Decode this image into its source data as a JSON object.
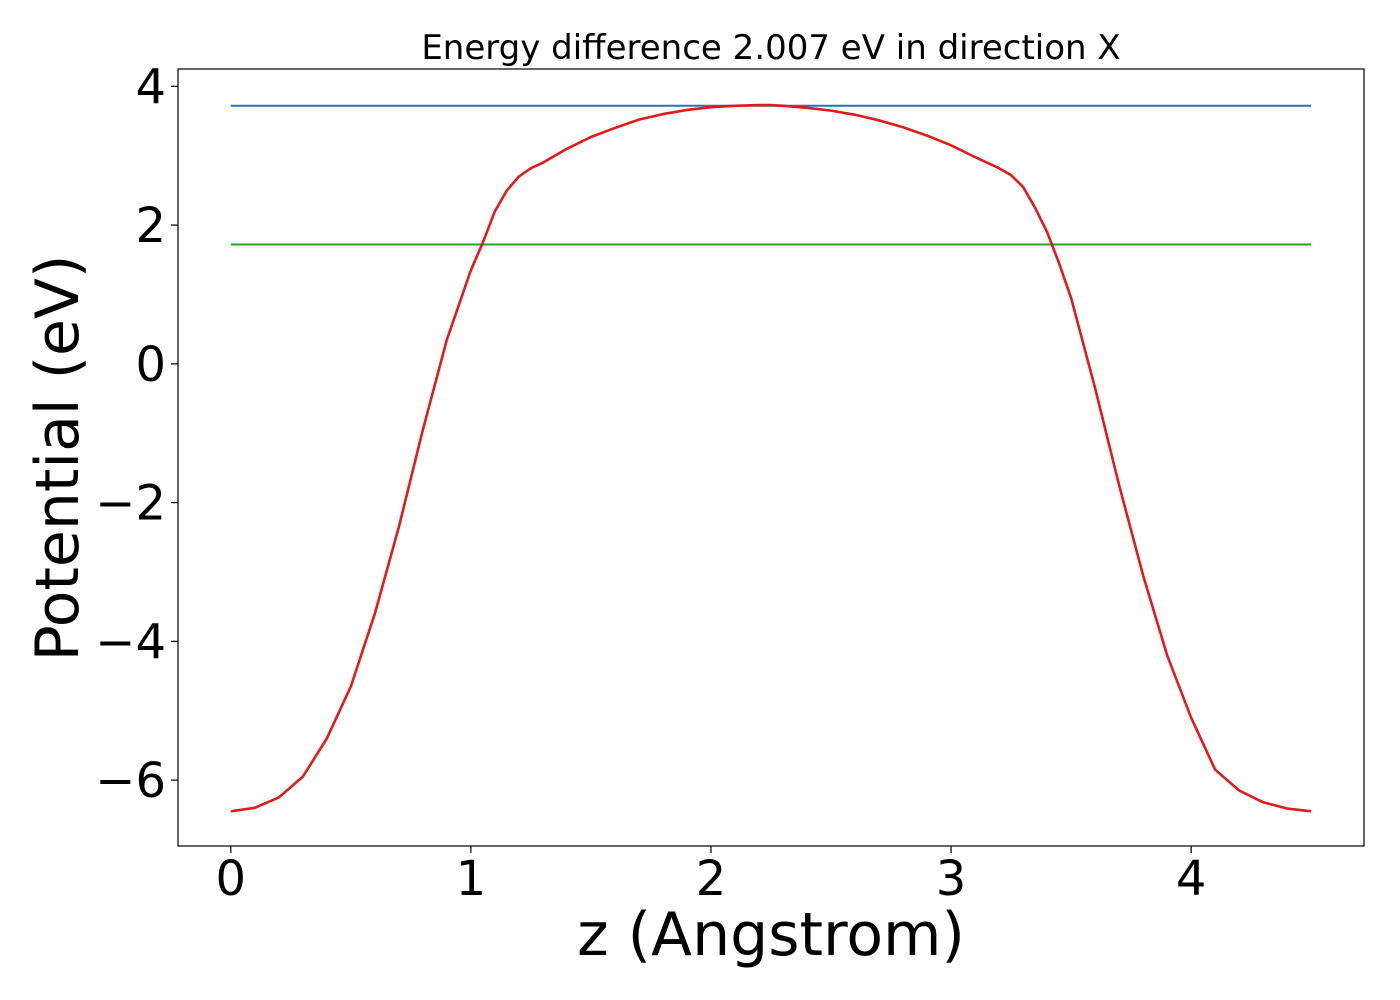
{
  "chart_data": {
    "type": "line",
    "title": "Energy difference 2.007 eV in direction X",
    "xlabel": "z (Angstrom)",
    "ylabel": "Potential (eV)",
    "xlim": [
      -0.22,
      4.72
    ],
    "ylim": [
      -6.95,
      4.25
    ],
    "xticks": [
      0,
      1,
      2,
      3,
      4
    ],
    "xtick_labels": [
      "0",
      "1",
      "2",
      "3",
      "4"
    ],
    "yticks": [
      4,
      2,
      0,
      -2,
      -4,
      -6
    ],
    "ytick_labels": [
      "4",
      "2",
      "0",
      "−2",
      "−4",
      "−6"
    ],
    "grid": false,
    "series": [
      {
        "color": "#1f77b4",
        "x": [
          0,
          4.5
        ],
        "y": [
          3.72,
          3.72
        ]
      },
      {
        "color": "#2ca02c",
        "x": [
          0,
          4.5
        ],
        "y": [
          1.72,
          1.72
        ]
      },
      {
        "color": "#e31a1c",
        "x": [
          0,
          0.1,
          0.2,
          0.3,
          0.4,
          0.5,
          0.6,
          0.7,
          0.8,
          0.9,
          1.0,
          1.05,
          1.1,
          1.15,
          1.2,
          1.25,
          1.3,
          1.4,
          1.5,
          1.6,
          1.7,
          1.8,
          1.9,
          2.0,
          2.1,
          2.2,
          2.25,
          2.3,
          2.4,
          2.5,
          2.6,
          2.7,
          2.8,
          2.9,
          3.0,
          3.1,
          3.2,
          3.25,
          3.3,
          3.35,
          3.4,
          3.45,
          3.5,
          3.6,
          3.7,
          3.8,
          3.9,
          4.0,
          4.1,
          4.2,
          4.3,
          4.4,
          4.5
        ],
        "y": [
          -6.45,
          -6.4,
          -6.25,
          -5.95,
          -5.4,
          -4.65,
          -3.6,
          -2.35,
          -0.95,
          0.35,
          1.35,
          1.75,
          2.2,
          2.5,
          2.7,
          2.82,
          2.9,
          3.1,
          3.27,
          3.4,
          3.52,
          3.6,
          3.66,
          3.7,
          3.72,
          3.73,
          3.73,
          3.72,
          3.69,
          3.65,
          3.59,
          3.51,
          3.41,
          3.29,
          3.15,
          2.98,
          2.82,
          2.72,
          2.55,
          2.25,
          1.9,
          1.45,
          0.95,
          -0.35,
          -1.75,
          -3.05,
          -4.2,
          -5.1,
          -5.85,
          -6.15,
          -6.32,
          -6.41,
          -6.45
        ]
      }
    ]
  }
}
